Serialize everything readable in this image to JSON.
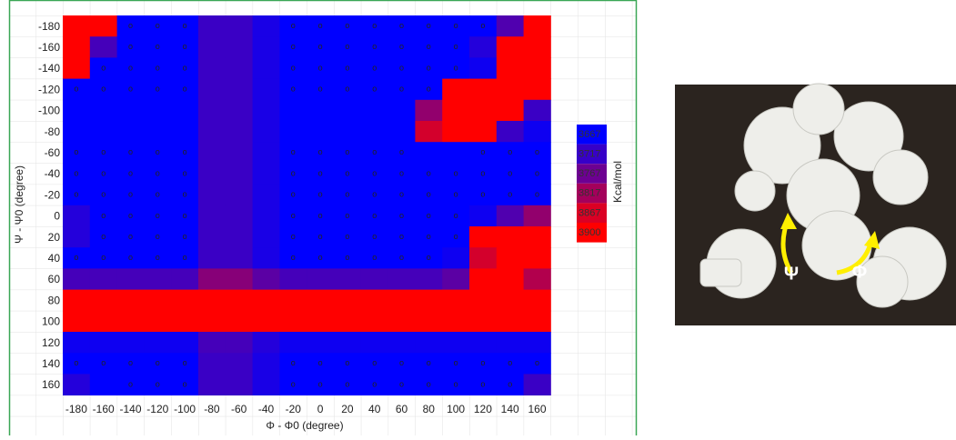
{
  "chart_data": {
    "type": "heatmap",
    "x_label": "Φ - Φ0 (degree)",
    "y_label": "Ψ - Ψ0 (degree)",
    "categories": [
      -180,
      -160,
      -140,
      -120,
      -100,
      -80,
      -60,
      -40,
      -20,
      0,
      20,
      40,
      60,
      80,
      100,
      120,
      140,
      160
    ],
    "y_categories": [
      -180,
      -160,
      -140,
      -120,
      -100,
      -80,
      -60,
      -40,
      -20,
      0,
      20,
      40,
      60,
      80,
      100,
      120,
      140,
      160
    ],
    "values": [
      [
        3900,
        3900,
        3667,
        3667,
        3667,
        3720,
        3720,
        3690,
        3667,
        3667,
        3667,
        3667,
        3667,
        3667,
        3667,
        3667,
        3740,
        3900
      ],
      [
        3900,
        3730,
        3667,
        3667,
        3667,
        3720,
        3720,
        3690,
        3667,
        3667,
        3667,
        3667,
        3667,
        3667,
        3667,
        3700,
        3900,
        3900
      ],
      [
        3900,
        3667,
        3667,
        3667,
        3667,
        3720,
        3720,
        3690,
        3667,
        3667,
        3667,
        3667,
        3667,
        3667,
        3667,
        3680,
        3900,
        3900
      ],
      [
        3667,
        3667,
        3667,
        3667,
        3667,
        3720,
        3720,
        3690,
        3667,
        3667,
        3667,
        3667,
        3667,
        3667,
        3900,
        3900,
        3900,
        3900
      ],
      [
        3667,
        3667,
        3667,
        3667,
        3667,
        3720,
        3720,
        3690,
        3667,
        3667,
        3667,
        3667,
        3667,
        3800,
        3900,
        3900,
        3900,
        3720
      ],
      [
        3667,
        3667,
        3667,
        3667,
        3667,
        3720,
        3720,
        3690,
        3667,
        3667,
        3667,
        3667,
        3667,
        3860,
        3900,
        3900,
        3720,
        3680
      ],
      [
        3667,
        3667,
        3667,
        3667,
        3667,
        3720,
        3720,
        3690,
        3667,
        3667,
        3667,
        3667,
        3667,
        3667,
        3667,
        3667,
        3667,
        3667
      ],
      [
        3667,
        3667,
        3667,
        3667,
        3667,
        3720,
        3720,
        3690,
        3667,
        3667,
        3667,
        3667,
        3667,
        3667,
        3667,
        3667,
        3667,
        3667
      ],
      [
        3667,
        3667,
        3667,
        3667,
        3667,
        3720,
        3720,
        3690,
        3667,
        3667,
        3667,
        3667,
        3667,
        3667,
        3667,
        3667,
        3667,
        3667
      ],
      [
        3700,
        3667,
        3667,
        3667,
        3667,
        3720,
        3720,
        3690,
        3667,
        3667,
        3667,
        3667,
        3667,
        3667,
        3667,
        3680,
        3740,
        3800
      ],
      [
        3700,
        3667,
        3667,
        3667,
        3667,
        3720,
        3720,
        3690,
        3667,
        3667,
        3667,
        3667,
        3667,
        3667,
        3667,
        3900,
        3900,
        3900
      ],
      [
        3667,
        3667,
        3667,
        3667,
        3667,
        3720,
        3720,
        3690,
        3667,
        3667,
        3667,
        3667,
        3667,
        3667,
        3680,
        3860,
        3900,
        3900
      ],
      [
        3730,
        3730,
        3730,
        3730,
        3730,
        3790,
        3790,
        3750,
        3730,
        3730,
        3730,
        3730,
        3730,
        3730,
        3750,
        3900,
        3900,
        3830
      ],
      [
        3900,
        3900,
        3900,
        3900,
        3900,
        3900,
        3900,
        3900,
        3900,
        3900,
        3900,
        3900,
        3900,
        3900,
        3900,
        3900,
        3900,
        3900
      ],
      [
        3900,
        3900,
        3900,
        3900,
        3900,
        3900,
        3900,
        3900,
        3900,
        3900,
        3900,
        3900,
        3900,
        3900,
        3900,
        3900,
        3900,
        3900
      ],
      [
        3680,
        3680,
        3680,
        3680,
        3680,
        3730,
        3730,
        3700,
        3680,
        3680,
        3680,
        3680,
        3680,
        3680,
        3680,
        3680,
        3680,
        3680
      ],
      [
        3667,
        3667,
        3667,
        3667,
        3667,
        3720,
        3720,
        3690,
        3667,
        3667,
        3667,
        3667,
        3667,
        3667,
        3667,
        3667,
        3667,
        3667
      ],
      [
        3700,
        3667,
        3667,
        3667,
        3667,
        3720,
        3720,
        3690,
        3667,
        3667,
        3667,
        3667,
        3667,
        3667,
        3667,
        3667,
        3667,
        3720
      ]
    ],
    "markers": [
      [
        null,
        null,
        "o",
        "o",
        "o",
        null,
        null,
        null,
        "o",
        "o",
        "o",
        "o",
        "o",
        "o",
        "o",
        "o",
        null,
        null
      ],
      [
        null,
        null,
        "o",
        "o",
        "o",
        null,
        null,
        null,
        "o",
        "o",
        "o",
        "o",
        "o",
        "o",
        "o",
        null,
        null,
        null
      ],
      [
        null,
        "o",
        "o",
        "o",
        "o",
        null,
        null,
        null,
        "o",
        "o",
        "o",
        "o",
        "o",
        "o",
        "o",
        null,
        null,
        null
      ],
      [
        "o",
        "o",
        "o",
        "o",
        "o",
        null,
        null,
        null,
        "o",
        "o",
        "o",
        "o",
        "o",
        "o",
        null,
        null,
        null,
        null
      ],
      [
        null,
        null,
        null,
        null,
        null,
        null,
        null,
        null,
        null,
        null,
        null,
        null,
        null,
        null,
        null,
        null,
        null,
        null
      ],
      [
        null,
        null,
        null,
        null,
        null,
        null,
        null,
        null,
        null,
        null,
        null,
        null,
        null,
        null,
        null,
        null,
        null,
        null
      ],
      [
        "o",
        "o",
        "o",
        "o",
        "o",
        null,
        null,
        null,
        "o",
        "o",
        "o",
        "o",
        "o",
        null,
        null,
        "o",
        "o",
        "o"
      ],
      [
        "o",
        "o",
        "o",
        "o",
        "o",
        null,
        null,
        null,
        "o",
        "o",
        "o",
        "o",
        "o",
        "o",
        "o",
        "o",
        "o",
        "o"
      ],
      [
        "o",
        "o",
        "o",
        "o",
        "o",
        null,
        null,
        null,
        "o",
        "o",
        "o",
        "o",
        "o",
        "o",
        "o",
        "o",
        "o",
        "o"
      ],
      [
        null,
        "o",
        "o",
        "o",
        "o",
        null,
        null,
        null,
        "o",
        "o",
        "o",
        "o",
        "o",
        "o",
        "o",
        null,
        null,
        null
      ],
      [
        null,
        "o",
        "o",
        "o",
        "o",
        null,
        null,
        null,
        "o",
        "o",
        "o",
        "o",
        "o",
        "o",
        "o",
        null,
        null,
        null
      ],
      [
        "o",
        "o",
        "o",
        "o",
        "o",
        null,
        null,
        null,
        "o",
        "o",
        "o",
        "o",
        "o",
        "o",
        null,
        null,
        null,
        null
      ],
      [
        null,
        null,
        null,
        null,
        null,
        null,
        null,
        null,
        null,
        null,
        null,
        null,
        null,
        null,
        null,
        null,
        null,
        null
      ],
      [
        null,
        null,
        null,
        null,
        null,
        null,
        null,
        null,
        null,
        null,
        null,
        null,
        null,
        null,
        null,
        null,
        null,
        null
      ],
      [
        null,
        null,
        null,
        null,
        null,
        null,
        null,
        null,
        null,
        null,
        null,
        null,
        null,
        null,
        null,
        null,
        null,
        null
      ],
      [
        null,
        null,
        null,
        null,
        null,
        null,
        null,
        null,
        null,
        null,
        null,
        null,
        null,
        null,
        null,
        null,
        null,
        null
      ],
      [
        "o",
        "o",
        "o",
        "o",
        "o",
        null,
        null,
        null,
        "o",
        "o",
        "o",
        "o",
        "o",
        "o",
        "o",
        "o",
        "o",
        "o"
      ],
      [
        null,
        null,
        "o",
        "o",
        "o",
        null,
        null,
        null,
        "o",
        "o",
        "o",
        "o",
        "o",
        "o",
        "o",
        "o",
        "o",
        null
      ]
    ],
    "colorbar_label": "Kcal/mol",
    "colorbar_ticks": [
      3667,
      3717,
      3767,
      3817,
      3867,
      3900
    ],
    "colors": [
      "#0000ff",
      "#ff0000"
    ]
  },
  "photo": {
    "labels": [
      "Ψ",
      "Φ"
    ]
  }
}
